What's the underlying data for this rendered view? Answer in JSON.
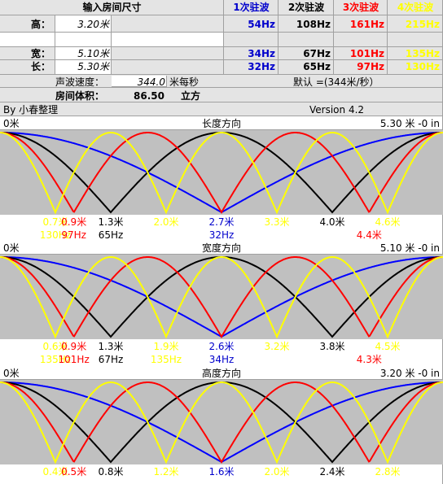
{
  "header": {
    "title": "输入房间尺寸",
    "modes": [
      {
        "text": "1次驻波",
        "color": "#0000cc"
      },
      {
        "text": "2次驻波",
        "color": "#000000"
      },
      {
        "text": "3次驻波",
        "color": "#ff0000"
      },
      {
        "text": "4次驻波",
        "color": "#ffff00"
      }
    ]
  },
  "dimensions": [
    {
      "label": "高：",
      "value": "3.20米",
      "freqs": [
        "54Hz",
        "108Hz",
        "161Hz",
        "215Hz"
      ]
    },
    {
      "label": "宽：",
      "value": "5.10米",
      "freqs": [
        "34Hz",
        "67Hz",
        "101Hz",
        "135Hz"
      ]
    },
    {
      "label": "长：",
      "value": "5.30米",
      "freqs": [
        "32Hz",
        "65Hz",
        "97Hz",
        "130Hz"
      ]
    }
  ],
  "speed": {
    "label": "声波速度：",
    "value": "344.0",
    "unit": "米每秒",
    "default": "默认 =(344米/秒）"
  },
  "volume": {
    "label": "房间体积：",
    "value": "86.50",
    "unit": "立方"
  },
  "author": "By 小春整理",
  "version": "Version 4.2",
  "panels": [
    {
      "start": "0米",
      "title": "长度方向",
      "length": "5.30 米 -0 in",
      "positions": [
        {
          "text": "0.7米",
          "color": "#ffff00"
        },
        {
          "text": "0.9米",
          "color": "#ff0000"
        },
        {
          "text": "1.3米",
          "color": "#000000"
        },
        {
          "text": "2.0米",
          "color": "#ffff00"
        },
        {
          "text": "2.7米",
          "color": "#0000cc"
        },
        {
          "text": "3.3米",
          "color": "#ffff00"
        },
        {
          "text": "4.0米",
          "color": "#000000"
        },
        {
          "text": "4.6米",
          "color": "#ffff00"
        }
      ],
      "freqs": [
        {
          "text": "130Hz",
          "color": "#ffff00"
        },
        {
          "text": "97Hz",
          "color": "#ff0000"
        },
        {
          "text": "65Hz",
          "color": "#000000"
        },
        {
          "text": "32Hz",
          "color": "#0000cc"
        },
        {
          "text": "4.4米",
          "color": "#ff0000"
        }
      ]
    },
    {
      "start": "0米",
      "title": "宽度方向",
      "length": "5.10 米 -0 in",
      "positions": [
        {
          "text": "0.6米",
          "color": "#ffff00"
        },
        {
          "text": "0.9米",
          "color": "#ff0000"
        },
        {
          "text": "1.3米",
          "color": "#000000"
        },
        {
          "text": "1.9米",
          "color": "#ffff00"
        },
        {
          "text": "2.6米",
          "color": "#0000cc"
        },
        {
          "text": "3.2米",
          "color": "#ffff00"
        },
        {
          "text": "3.8米",
          "color": "#000000"
        },
        {
          "text": "4.5米",
          "color": "#ffff00"
        }
      ],
      "freqs": [
        {
          "text": "135Hz",
          "color": "#ffff00"
        },
        {
          "text": "101Hz",
          "color": "#ff0000"
        },
        {
          "text": "67Hz",
          "color": "#000000"
        },
        {
          "text": "135Hz",
          "color": "#ffff00"
        },
        {
          "text": "34Hz",
          "color": "#0000cc"
        },
        {
          "text": "4.3米",
          "color": "#ff0000"
        }
      ]
    },
    {
      "start": "0米",
      "title": "高度方向",
      "length": "3.20 米 -0 in",
      "positions": [
        {
          "text": "0.4米",
          "color": "#ffff00"
        },
        {
          "text": "0.5米",
          "color": "#ff0000"
        },
        {
          "text": "0.8米",
          "color": "#000000"
        },
        {
          "text": "1.2米",
          "color": "#ffff00"
        },
        {
          "text": "1.6米",
          "color": "#0000cc"
        },
        {
          "text": "2.0米",
          "color": "#ffff00"
        },
        {
          "text": "2.4米",
          "color": "#000000"
        },
        {
          "text": "2.8米",
          "color": "#ffff00"
        }
      ],
      "freqs": []
    }
  ]
}
